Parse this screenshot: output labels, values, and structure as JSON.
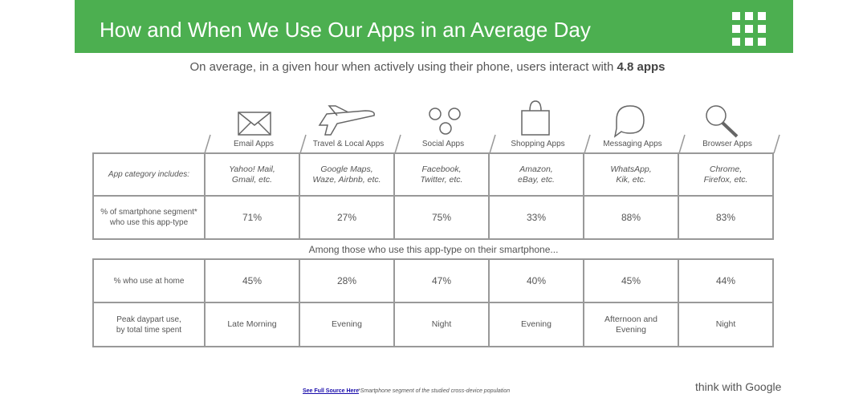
{
  "header": {
    "title": "How and When We Use Our Apps in an Average Day"
  },
  "subtitle": {
    "text": "On average, in a given hour when actively using their phone, users interact with",
    "emphasis": "4.8 apps"
  },
  "columns": [
    "Email Apps",
    "Travel & Local Apps",
    "Social Apps",
    "Shopping  Apps",
    "Messaging Apps",
    "Browser Apps"
  ],
  "table1": {
    "rows": [
      [
        "App category includes:",
        "Yahoo! Mail,\nGmail, etc.",
        "Google Maps,\nWaze, Airbnb, etc.",
        "Facebook,\nTwitter, etc.",
        "Amazon,\neBay, etc.",
        "WhatsApp,\nKik, etc.",
        "Chrome,\nFirefox, etc."
      ],
      [
        "% of smartphone segment*\nwho use this app-type",
        "71%",
        "27%",
        "75%",
        "33%",
        "88%",
        "83%"
      ]
    ]
  },
  "note": "Among those who use this app-type on their smartphone...",
  "table2": {
    "rows": [
      [
        "% who use at home",
        "45%",
        "28%",
        "47%",
        "40%",
        "45%",
        "44%"
      ],
      [
        "Peak daypart use,\nby total time spent",
        "Late Morning",
        "Evening",
        "Night",
        "Evening",
        "Afternoon and\nEvening",
        "Night"
      ]
    ]
  },
  "footer": {
    "link": "See Full Source Here",
    "note": "*Smartphone segment of the studied cross-device population"
  },
  "brand": "think with Google"
}
